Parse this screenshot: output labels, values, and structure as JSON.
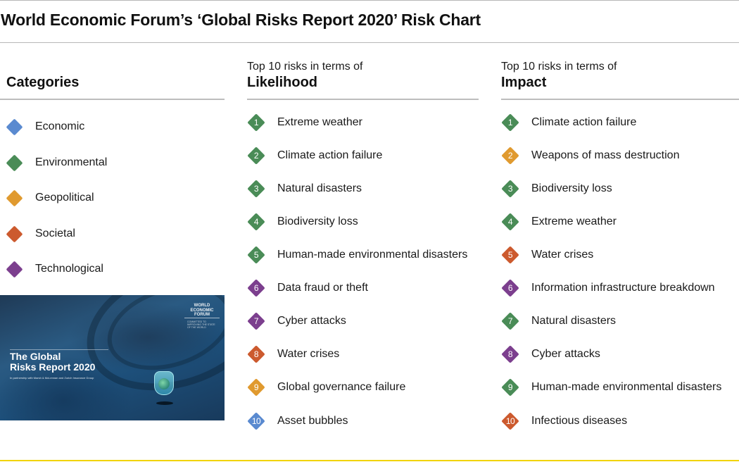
{
  "title": "World Economic Forum’s ‘Global Risks Report 2020’ Risk Chart",
  "colors": {
    "economic": "#5a8ad0",
    "environmental": "#4a8c57",
    "geopolitical": "#e09a2f",
    "societal": "#cc5a2e",
    "technological": "#7c3f8e",
    "rule": "#bdbdbd",
    "accent_line": "#f2d300"
  },
  "categories": {
    "heading": "Categories",
    "items": [
      {
        "label": "Economic",
        "color": "#5a8ad0"
      },
      {
        "label": "Environmental",
        "color": "#4a8c57"
      },
      {
        "label": "Geopolitical",
        "color": "#e09a2f"
      },
      {
        "label": "Societal",
        "color": "#cc5a2e"
      },
      {
        "label": "Technological",
        "color": "#7c3f8e"
      }
    ]
  },
  "likelihood": {
    "heading_small": "Top 10 risks in terms of",
    "heading_big": "Likelihood",
    "items": [
      {
        "rank": "1",
        "label": "Extreme weather",
        "color": "#4a8c57"
      },
      {
        "rank": "2",
        "label": "Climate action failure",
        "color": "#4a8c57"
      },
      {
        "rank": "3",
        "label": "Natural disasters",
        "color": "#4a8c57"
      },
      {
        "rank": "4",
        "label": "Biodiversity loss",
        "color": "#4a8c57"
      },
      {
        "rank": "5",
        "label": "Human-made environmental disasters",
        "color": "#4a8c57"
      },
      {
        "rank": "6",
        "label": "Data fraud or theft",
        "color": "#7c3f8e"
      },
      {
        "rank": "7",
        "label": "Cyber attacks",
        "color": "#7c3f8e"
      },
      {
        "rank": "8",
        "label": "Water crises",
        "color": "#cc5a2e"
      },
      {
        "rank": "9",
        "label": "Global governance failure",
        "color": "#e09a2f"
      },
      {
        "rank": "10",
        "label": "Asset bubbles",
        "color": "#5a8ad0"
      }
    ]
  },
  "impact": {
    "heading_small": "Top 10 risks in terms of",
    "heading_big": "Impact",
    "items": [
      {
        "rank": "1",
        "label": "Climate action failure",
        "color": "#4a8c57"
      },
      {
        "rank": "2",
        "label": "Weapons of mass destruction",
        "color": "#e09a2f"
      },
      {
        "rank": "3",
        "label": "Biodiversity loss",
        "color": "#4a8c57"
      },
      {
        "rank": "4",
        "label": "Extreme weather",
        "color": "#4a8c57"
      },
      {
        "rank": "5",
        "label": "Water crises",
        "color": "#cc5a2e"
      },
      {
        "rank": "6",
        "label": "Information infrastructure breakdown",
        "color": "#7c3f8e"
      },
      {
        "rank": "7",
        "label": "Natural disasters",
        "color": "#4a8c57"
      },
      {
        "rank": "8",
        "label": "Cyber attacks",
        "color": "#7c3f8e"
      },
      {
        "rank": "9",
        "label": "Human-made environmental disasters",
        "color": "#4a8c57"
      },
      {
        "rank": "10",
        "label": "Infectious diseases",
        "color": "#cc5a2e"
      }
    ]
  },
  "cover": {
    "title_line1": "The Global",
    "title_line2": "Risks Report 2020",
    "subtitle": "In partnership with Marsh & McLennan and Zurich Insurance Group",
    "logo_line1": "WORLD",
    "logo_line2": "ECONOMIC",
    "logo_line3": "FORUM",
    "logo_tagline": "COMMITTED TO IMPROVING THE STATE OF THE WORLD"
  }
}
